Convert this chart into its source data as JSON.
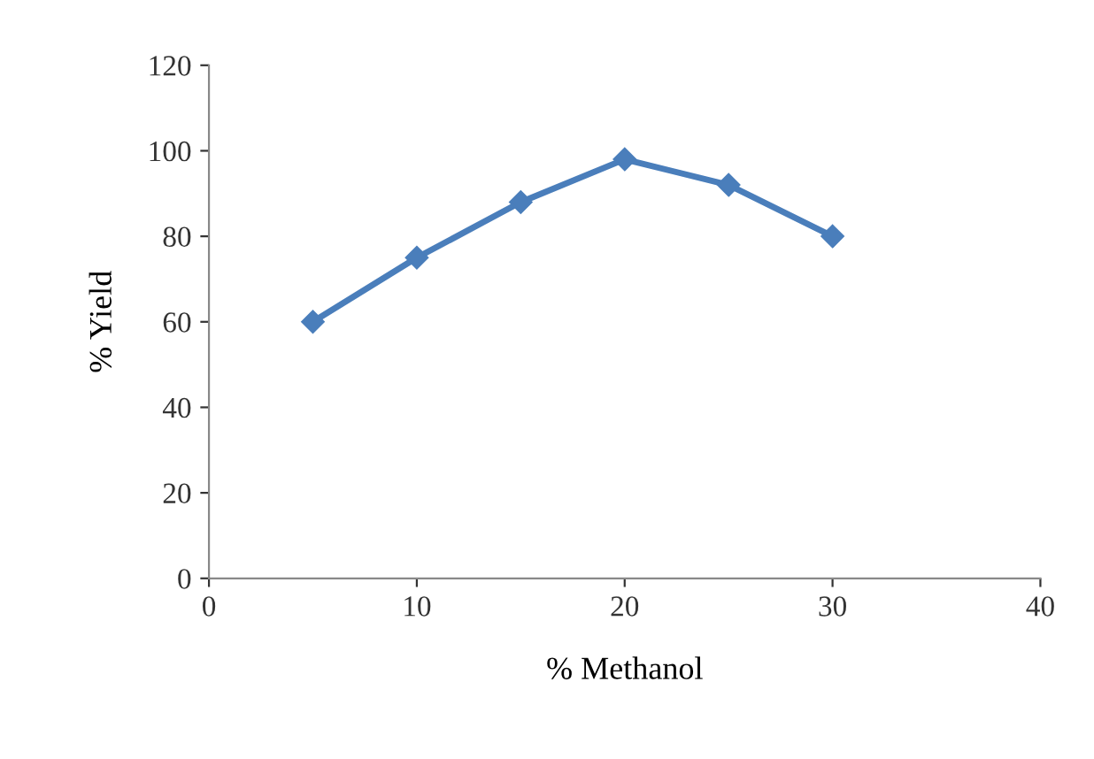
{
  "chart_data": {
    "type": "line",
    "xlabel": "% Methanol",
    "ylabel": "% Yield",
    "x": [
      5,
      10,
      15,
      20,
      25,
      30
    ],
    "series": [
      {
        "color": "#4a7ebb",
        "values": [
          60,
          75,
          88,
          98,
          92,
          80
        ]
      }
    ],
    "xlim": [
      0,
      40
    ],
    "xticks": [
      0,
      10,
      20,
      30,
      40
    ],
    "ylim": [
      0,
      120
    ],
    "yticks": [
      0,
      20,
      40,
      60,
      80,
      100,
      120
    ],
    "marker": "diamond",
    "line_style": "solid",
    "grid": false,
    "legend": false
  }
}
